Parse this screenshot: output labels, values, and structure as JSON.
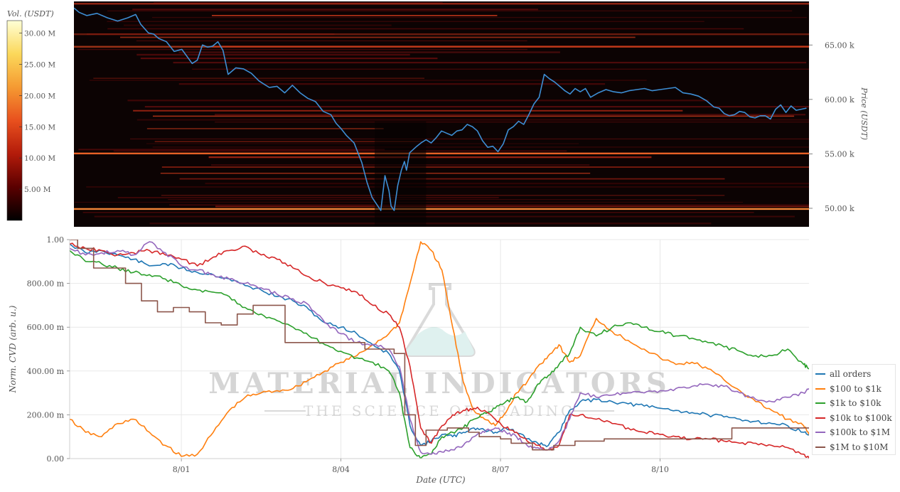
{
  "chart_data": [
    {
      "type": "heatmap",
      "colorbar": {
        "title": "Vol. (USDT)",
        "ticks": [
          "5.00 M",
          "10.00 M",
          "15.00 M",
          "20.00 M",
          "25.00 M",
          "30.00 M"
        ],
        "tick_values": [
          5,
          10,
          15,
          20,
          25,
          30
        ],
        "range": [
          0,
          32
        ],
        "colors": [
          "#000000",
          "#5a0000",
          "#b31b0a",
          "#e8501e",
          "#f59a32",
          "#fbd85a",
          "#ffffd6"
        ]
      },
      "y_axis": {
        "label": "Price (USDT)",
        "ticks": [
          "50.00 k",
          "55.00 k",
          "60.00 k",
          "65.00 k"
        ],
        "tick_values": [
          50000,
          55000,
          60000,
          65000
        ],
        "range": [
          48300,
          69000
        ],
        "side": "right"
      },
      "x_range": [
        -1.75,
        12.55
      ],
      "price_line_color": "#3d8ed4",
      "price_series": {
        "x": [
          -1.75,
          -1.65,
          -1.5,
          -1.3,
          -1.1,
          -0.9,
          -0.7,
          -0.55,
          -0.45,
          -0.3,
          -0.2,
          -0.1,
          0.05,
          0.2,
          0.35,
          0.55,
          0.65,
          0.75,
          0.85,
          0.95,
          1.05,
          1.15,
          1.25,
          1.4,
          1.55,
          1.7,
          1.85,
          1.95,
          2.05,
          2.2,
          2.35,
          2.5,
          2.65,
          2.8,
          2.95,
          3.1,
          3.25,
          3.35,
          3.45,
          3.55,
          3.7,
          3.85,
          3.95,
          4.05,
          4.15,
          4.22,
          4.3,
          4.38,
          4.42,
          4.48,
          4.55,
          4.62,
          4.68,
          4.72,
          4.78,
          4.85,
          4.92,
          5.0,
          5.1,
          5.2,
          5.3,
          5.4,
          5.5,
          5.6,
          5.7,
          5.8,
          5.9,
          6.0,
          6.1,
          6.2,
          6.3,
          6.4,
          6.5,
          6.6,
          6.7,
          6.8,
          6.9,
          7.0,
          7.1,
          7.2,
          7.3,
          7.4,
          7.5,
          7.6,
          7.7,
          7.8,
          7.9,
          8.0,
          8.1,
          8.2,
          8.3,
          8.45,
          8.6,
          8.75,
          8.9,
          9.05,
          9.2,
          9.35,
          9.5,
          9.65,
          9.8,
          9.95,
          10.1,
          10.25,
          10.4,
          10.55,
          10.7,
          10.8,
          10.9,
          11.0,
          11.1,
          11.2,
          11.3,
          11.4,
          11.5,
          11.6,
          11.7,
          11.8,
          11.9,
          12.0,
          12.1,
          12.2,
          12.3,
          12.4,
          12.5,
          12.55
        ],
        "y": [
          68400,
          68000,
          67700,
          67900,
          67500,
          67200,
          67500,
          67800,
          66900,
          66100,
          66000,
          65600,
          65300,
          64400,
          64600,
          63300,
          63600,
          65000,
          64800,
          64900,
          65300,
          64500,
          62300,
          62900,
          62800,
          62400,
          61700,
          61400,
          61100,
          61200,
          60600,
          61300,
          60600,
          60100,
          59800,
          58900,
          58600,
          57800,
          57300,
          56700,
          56000,
          54200,
          52400,
          51000,
          50300,
          49800,
          53000,
          51600,
          50200,
          49800,
          52100,
          53500,
          54300,
          53500,
          55100,
          55400,
          55700,
          56000,
          56300,
          56000,
          56500,
          57100,
          56900,
          56700,
          57100,
          57200,
          57700,
          57500,
          57100,
          56200,
          55600,
          55700,
          55200,
          55900,
          57200,
          57500,
          58000,
          57700,
          58600,
          59600,
          60200,
          62300,
          61900,
          61600,
          61200,
          60800,
          60500,
          61000,
          60700,
          61000,
          60200,
          60600,
          60900,
          60700,
          60600,
          60800,
          60900,
          61000,
          60800,
          60900,
          61000,
          61100,
          60600,
          60500,
          60300,
          59900,
          59300,
          59200,
          58700,
          58500,
          58600,
          58900,
          58800,
          58400,
          58300,
          58500,
          58500,
          58200,
          59100,
          59500,
          58800,
          59400,
          59000,
          59100,
          59200
        ]
      }
    },
    {
      "type": "line",
      "title": "",
      "xlabel": "Date (UTC)",
      "ylabel": "Norm. CVD (arb. u.)",
      "x_ticks": [
        "8/01",
        "8/04",
        "8/07",
        "8/10"
      ],
      "x_tick_values": [
        1,
        4,
        7,
        10
      ],
      "xlim": [
        -1.1,
        12.8
      ],
      "ylim": [
        0,
        1
      ],
      "y_ticks": [
        "0.00",
        "200.00 m",
        "400.00 m",
        "600.00 m",
        "800.00 m",
        "1.00"
      ],
      "y_tick_values": [
        0,
        0.2,
        0.4,
        0.6,
        0.8,
        1.0
      ],
      "grid": true,
      "legend_position": "right",
      "x": [
        -1.1,
        -0.8,
        -0.5,
        -0.2,
        0.1,
        0.4,
        0.7,
        1.0,
        1.3,
        1.6,
        1.9,
        2.2,
        2.5,
        2.8,
        3.1,
        3.4,
        3.7,
        4.0,
        4.3,
        4.6,
        4.9,
        5.1,
        5.3,
        5.5,
        5.7,
        5.9,
        6.1,
        6.3,
        6.5,
        6.7,
        6.9,
        7.1,
        7.3,
        7.5,
        7.7,
        7.9,
        8.1,
        8.3,
        8.5,
        8.8,
        9.1,
        9.4,
        9.7,
        10.0,
        10.3,
        10.6,
        10.9,
        11.2,
        11.5,
        11.8,
        12.1,
        12.4,
        12.7,
        12.8
      ],
      "series": [
        {
          "name": "all orders",
          "color": "#1f77b4",
          "values": [
            0.98,
            0.94,
            0.95,
            0.93,
            0.91,
            0.88,
            0.89,
            0.87,
            0.85,
            0.84,
            0.82,
            0.79,
            0.77,
            0.74,
            0.72,
            0.68,
            0.62,
            0.6,
            0.57,
            0.52,
            0.48,
            0.4,
            0.15,
            0.06,
            0.08,
            0.11,
            0.1,
            0.12,
            0.14,
            0.13,
            0.12,
            0.14,
            0.12,
            0.09,
            0.07,
            0.06,
            0.12,
            0.22,
            0.26,
            0.27,
            0.26,
            0.25,
            0.24,
            0.23,
            0.22,
            0.21,
            0.2,
            0.19,
            0.18,
            0.17,
            0.16,
            0.15,
            0.12,
            0.11
          ]
        },
        {
          "name": "$100 to $1k",
          "color": "#ff7f0e",
          "values": [
            0.18,
            0.12,
            0.1,
            0.16,
            0.18,
            0.12,
            0.06,
            0.01,
            0.02,
            0.12,
            0.22,
            0.28,
            0.3,
            0.31,
            0.32,
            0.36,
            0.4,
            0.44,
            0.47,
            0.52,
            0.57,
            0.62,
            0.8,
            0.99,
            0.95,
            0.86,
            0.6,
            0.35,
            0.22,
            0.18,
            0.15,
            0.21,
            0.3,
            0.35,
            0.42,
            0.47,
            0.52,
            0.44,
            0.47,
            0.64,
            0.58,
            0.54,
            0.5,
            0.46,
            0.43,
            0.44,
            0.41,
            0.36,
            0.31,
            0.26,
            0.22,
            0.18,
            0.15,
            0.11
          ]
        },
        {
          "name": "$1k to $10k",
          "color": "#2ca02c",
          "values": [
            0.95,
            0.9,
            0.89,
            0.87,
            0.85,
            0.84,
            0.82,
            0.79,
            0.77,
            0.76,
            0.74,
            0.69,
            0.66,
            0.63,
            0.6,
            0.56,
            0.52,
            0.49,
            0.46,
            0.44,
            0.4,
            0.3,
            0.05,
            0.0,
            0.02,
            0.1,
            0.12,
            0.14,
            0.18,
            0.21,
            0.23,
            0.26,
            0.28,
            0.26,
            0.34,
            0.38,
            0.43,
            0.48,
            0.6,
            0.56,
            0.6,
            0.62,
            0.6,
            0.58,
            0.56,
            0.55,
            0.53,
            0.51,
            0.49,
            0.47,
            0.47,
            0.5,
            0.43,
            0.41
          ]
        },
        {
          "name": "$10k to $100k",
          "color": "#d62728",
          "values": [
            0.98,
            0.96,
            0.95,
            0.93,
            0.94,
            0.95,
            0.93,
            0.91,
            0.88,
            0.92,
            0.95,
            0.97,
            0.93,
            0.91,
            0.87,
            0.83,
            0.8,
            0.78,
            0.76,
            0.7,
            0.66,
            0.6,
            0.42,
            0.14,
            0.07,
            0.15,
            0.2,
            0.22,
            0.23,
            0.22,
            0.18,
            0.14,
            0.12,
            0.08,
            0.06,
            0.04,
            0.06,
            0.2,
            0.2,
            0.18,
            0.16,
            0.14,
            0.12,
            0.11,
            0.1,
            0.09,
            0.09,
            0.08,
            0.07,
            0.07,
            0.06,
            0.05,
            0.02,
            0.0
          ]
        },
        {
          "name": "$100k to $1M",
          "color": "#9467bd",
          "values": [
            0.96,
            0.93,
            0.94,
            0.95,
            0.93,
            0.99,
            0.94,
            0.88,
            0.86,
            0.84,
            0.82,
            0.8,
            0.78,
            0.75,
            0.73,
            0.7,
            0.62,
            0.57,
            0.53,
            0.52,
            0.5,
            0.42,
            0.18,
            0.03,
            0.02,
            0.03,
            0.04,
            0.06,
            0.1,
            0.12,
            0.14,
            0.12,
            0.1,
            0.06,
            0.05,
            0.04,
            0.08,
            0.18,
            0.3,
            0.28,
            0.29,
            0.3,
            0.3,
            0.31,
            0.32,
            0.33,
            0.34,
            0.33,
            0.3,
            0.27,
            0.26,
            0.28,
            0.3,
            0.32
          ]
        },
        {
          "name": "$1M to $10M",
          "color": "#8c564b",
          "values": [
            1.0,
            0.96,
            0.87,
            0.87,
            0.8,
            0.72,
            0.67,
            0.69,
            0.67,
            0.62,
            0.61,
            0.66,
            0.7,
            0.7,
            0.53,
            0.53,
            0.53,
            0.53,
            0.53,
            0.5,
            0.5,
            0.48,
            0.2,
            0.06,
            0.13,
            0.13,
            0.14,
            0.14,
            0.12,
            0.1,
            0.1,
            0.09,
            0.07,
            0.07,
            0.04,
            0.04,
            0.06,
            0.06,
            0.08,
            0.08,
            0.09,
            0.09,
            0.09,
            0.09,
            0.09,
            0.09,
            0.09,
            0.09,
            0.14,
            0.14,
            0.14,
            0.14,
            0.14,
            0.14
          ]
        }
      ]
    }
  ],
  "watermark": {
    "brand_main": "MATERIAL INDICATORS",
    "brand_sub": "THE SCIENCE OF TRADING"
  }
}
